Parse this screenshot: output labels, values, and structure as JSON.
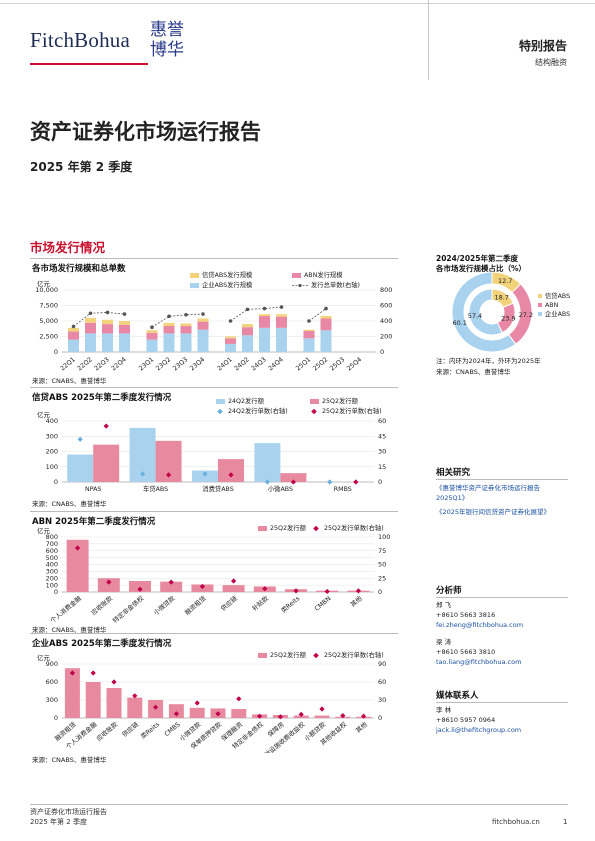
{
  "header": {
    "brand": "FitchBohua",
    "logo_line1": "惠誉",
    "logo_line2": "博华",
    "report_type": "特别报告",
    "category": "结构融资"
  },
  "title": "资产证券化市场运行报告",
  "subtitle": "2025 年第 2 季度",
  "section_title": "市场发行情况",
  "sidebar": {
    "donut_title_1": "2024/2025年第二季度",
    "donut_title_2": "各市场发行规模占比（%）",
    "donut_note_1": "注：内环为2024年，外环为2025年",
    "donut_note_2": "来源：CNABS、惠誉博华",
    "research_heading": "相关研究",
    "research_links": [
      "《惠誉博华资产证券化市场运行报告2025Q1》",
      "《2025年银行间信贷资产证券化展望》"
    ],
    "analysts_heading": "分析师",
    "analysts": [
      {
        "name": "郑  飞",
        "phone": "+8610 5663 3816",
        "email": "fei.zheng@fitchbohua.com"
      },
      {
        "name": "梁  涛",
        "phone": "+8610 5663 3810",
        "email": "tao.liang@fitchbohua.com"
      }
    ],
    "media_heading": "媒体联系人",
    "media": {
      "name": "李  林",
      "phone": "+8610 5957 0964",
      "email": "jack.li@thefitchgroup.com"
    }
  },
  "footer": {
    "line1": "资产证券化市场运行报告",
    "line2": "2025 年第 2 季度",
    "site": "fitchbohua.cn",
    "page": "1"
  },
  "colors": {
    "xindai": "#f2d27a",
    "abn": "#e887a6",
    "qiye": "#a9d2ee",
    "marker": "#c0004a",
    "bar25": "#e88a9f",
    "bar24": "#a9d2ee",
    "brand_red": "#c8102e"
  },
  "chart_data": [
    {
      "id": "chart1",
      "type": "bar",
      "title": "各市场发行规模和总单数",
      "ylabel": "亿元",
      "ylim": [
        0,
        10000
      ],
      "ylim2": [
        0,
        800
      ],
      "yticks": [
        "0",
        "2,500",
        "5,000",
        "7,500",
        "10,000"
      ],
      "y2ticks": [
        "0",
        "200",
        "400",
        "600",
        "800"
      ],
      "legend": [
        "信贷ABS发行规模",
        "ABN发行规模",
        "企业ABS发行规模",
        "发行总单数(右轴)"
      ],
      "categories": [
        "22Q1",
        "22Q2",
        "22Q3",
        "22Q4",
        "23Q1",
        "23Q2",
        "23Q3",
        "23Q4",
        "24Q1",
        "24Q2",
        "24Q3",
        "24Q4",
        "25Q1",
        "25Q2",
        "25Q3",
        "25Q4"
      ],
      "series": [
        {
          "name": "信贷ABS发行规模",
          "values": [
            600,
            800,
            700,
            600,
            400,
            500,
            400,
            500,
            300,
            500,
            300,
            400,
            200,
            400,
            0,
            0
          ]
        },
        {
          "name": "ABN发行规模",
          "values": [
            1300,
            1700,
            1500,
            1400,
            1100,
            1200,
            1200,
            1300,
            900,
            1300,
            1900,
            1800,
            1200,
            1900,
            0,
            0
          ]
        },
        {
          "name": "企业ABS发行规模",
          "values": [
            2000,
            3000,
            3000,
            3000,
            2000,
            3000,
            3000,
            3600,
            1300,
            2700,
            3900,
            3900,
            2200,
            3500,
            0,
            0
          ]
        },
        {
          "name": "发行总单数(右轴)",
          "values": [
            330,
            500,
            510,
            490,
            320,
            460,
            480,
            490,
            400,
            550,
            560,
            580,
            400,
            560,
            null,
            null
          ]
        }
      ]
    },
    {
      "id": "chart2",
      "type": "bar",
      "title": "信贷ABS 2025年第二季度发行情况",
      "ylabel": "亿元",
      "ylim": [
        0,
        400
      ],
      "ylim2": [
        0,
        60
      ],
      "yticks": [
        "0",
        "100",
        "200",
        "300",
        "400"
      ],
      "y2ticks": [
        "0",
        "15",
        "30",
        "45",
        "60"
      ],
      "legend": [
        "24Q2发行额",
        "25Q2发行额",
        "24Q2发行单数(右轴)",
        "25Q2发行单数(右轴)"
      ],
      "categories": [
        "NPAS",
        "车贷ABS",
        "消费贷ABS",
        "小微ABS",
        "RMBS"
      ],
      "series": [
        {
          "name": "24Q2发行额",
          "values": [
            180,
            355,
            75,
            255,
            0
          ]
        },
        {
          "name": "25Q2发行额",
          "values": [
            245,
            270,
            150,
            58,
            0
          ]
        },
        {
          "name": "24Q2发行单数(右轴)",
          "values": [
            42,
            8,
            8,
            0,
            0
          ]
        },
        {
          "name": "25Q2发行单数(右轴)",
          "values": [
            55,
            7,
            7,
            0,
            0
          ]
        }
      ]
    },
    {
      "id": "chart3",
      "type": "bar",
      "title": "ABN 2025年第二季度发行情况",
      "ylabel": "亿元",
      "ylim": [
        0,
        800
      ],
      "ylim2": [
        0,
        100
      ],
      "yticks": [
        "0",
        "100",
        "200",
        "300",
        "400",
        "500",
        "600",
        "700",
        "800"
      ],
      "y2ticks": [
        "0",
        "25",
        "50",
        "75",
        "100"
      ],
      "legend": [
        "25Q2发行额",
        "25Q2发行单数(右轴)"
      ],
      "categories": [
        "个人消费金融",
        "应收账款",
        "特定非金债权",
        "小微贷款",
        "融资租赁",
        "供应链",
        "补贴款",
        "类Reits",
        "CMBN",
        "其他"
      ],
      "series": [
        {
          "name": "25Q2发行额",
          "values": [
            760,
            200,
            160,
            150,
            110,
            100,
            80,
            40,
            20,
            20
          ]
        },
        {
          "name": "25Q2发行单数(右轴)",
          "values": [
            80,
            18,
            5,
            18,
            10,
            20,
            6,
            2,
            1,
            2
          ]
        }
      ]
    },
    {
      "id": "chart4",
      "type": "bar",
      "title": "企业ABS 2025年第二季度发行情况",
      "ylabel": "亿元",
      "ylim": [
        0,
        900
      ],
      "ylim2": [
        0,
        90
      ],
      "yticks": [
        "0",
        "300",
        "600",
        "900"
      ],
      "y2ticks": [
        "0",
        "30",
        "60",
        "90"
      ],
      "legend": [
        "25Q2发行额",
        "25Q2发行单数(右轴)"
      ],
      "categories": [
        "融资租赁",
        "个人消费金融",
        "应收账款",
        "供应链",
        "类Reits",
        "CMBS",
        "小微贷款",
        "保单质押贷款",
        "保理融资",
        "特定非金债权",
        "保障房",
        "基础设施收费收益权",
        "小额贷款",
        "其他收益权",
        "其他"
      ],
      "series": [
        {
          "name": "25Q2发行额",
          "values": [
            830,
            600,
            500,
            340,
            300,
            230,
            170,
            160,
            150,
            60,
            50,
            40,
            40,
            20,
            20
          ]
        },
        {
          "name": "25Q2发行单数(右轴)",
          "values": [
            75,
            75,
            60,
            37,
            18,
            7,
            25,
            7,
            32,
            3,
            2,
            6,
            15,
            4,
            3
          ]
        }
      ]
    },
    {
      "id": "donut",
      "type": "pie",
      "title": "各市场发行规模占比（%）",
      "legend": [
        "信贷ABS",
        "ABN",
        "企业ABS"
      ],
      "series": [
        {
          "name": "2025年",
          "values": [
            12.7,
            27.2,
            60.1
          ]
        },
        {
          "name": "2024年",
          "values": [
            18.7,
            23.9,
            57.4
          ]
        }
      ]
    }
  ]
}
